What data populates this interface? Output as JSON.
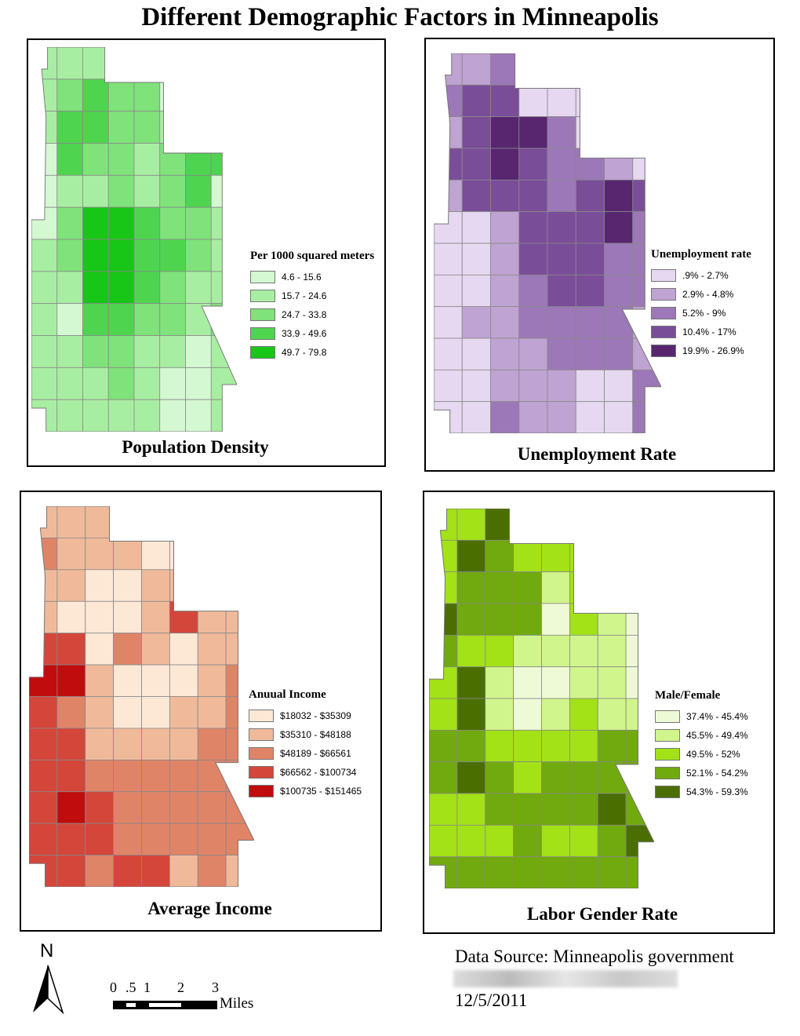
{
  "title": "Different Demographic Factors in Minneapolis",
  "maps": [
    {
      "id": "pop",
      "title": "Population Density",
      "legend_title": "Per 1000 squared meters",
      "classes": [
        "4.6 - 15.6",
        "15.7 - 24.6",
        "24.7 - 33.8",
        "33.9 - 49.6",
        "49.7 - 79.8"
      ],
      "colors": [
        "#d4f8d2",
        "#a8eea2",
        "#7fe27a",
        "#4fd44f",
        "#17c617"
      ],
      "grid": [
        "11100000",
        "12322021",
        "13322131",
        "03221233",
        "01121230",
        "02443221",
        "12443321",
        "11443211",
        "10332212",
        "11221101",
        "11121001",
        "11111001"
      ]
    },
    {
      "id": "unemp",
      "title": "Unemployment Rate",
      "legend_title": "Unemployment rate",
      "classes": [
        ".9% - 2.7%",
        "2.9% - 4.8%",
        "5.2% - 9%",
        "10.4% - 17%",
        "19.9% - 26.9%"
      ],
      "colors": [
        "#e5d8f0",
        "#bfa3d2",
        "#9c78b8",
        "#7a4d99",
        "#57266f"
      ],
      "grid": [
        "11200000",
        "23300011",
        "13442011",
        "33432210",
        "13332343",
        "00133342",
        "00133322",
        "00123322",
        "01122221",
        "00112221",
        "00111002",
        "00211002"
      ]
    },
    {
      "id": "income",
      "title": "Average Income",
      "legend_title": "Anuual Income",
      "classes": [
        "$18032 - $35309",
        "$35310 - $48188",
        "$48189 - $66561",
        "$66562 - $100734",
        "$100735 - $151465"
      ],
      "colors": [
        "#fde8d6",
        "#f0ba9a",
        "#e08468",
        "#d4463a",
        "#c00c0c"
      ],
      "grid": [
        "11111000",
        "21110002",
        "11001112",
        "10001311",
        "33021011",
        "44100012",
        "32100112",
        "33111122",
        "33222222",
        "34322222",
        "33322222",
        "33233121"
      ]
    },
    {
      "id": "labor",
      "title": "Labor Gender Rate",
      "legend_title": "Male/Female",
      "classes": [
        "37.4% - 45.4%",
        "45.5% - 49.4%",
        "49.5% - 52%",
        "52.1% - 54.2%",
        "54.3% - 59.3%"
      ],
      "colors": [
        "#eefad6",
        "#d0f58c",
        "#a2e216",
        "#70aa0e",
        "#4a6e00"
      ],
      "grid": [
        "22422200",
        "24322232",
        "23331212",
        "43330210",
        "32211110",
        "24100110",
        "24101211",
        "33222233",
        "34323333",
        "22333343",
        "22232234",
        "33333333"
      ]
    }
  ],
  "north_label": "N",
  "scale": {
    "ticks": [
      "0",
      ".5",
      "1",
      "2",
      "3"
    ],
    "unit": "Miles"
  },
  "source": "Data Source: Minneapolis government",
  "date": "12/5/2011"
}
